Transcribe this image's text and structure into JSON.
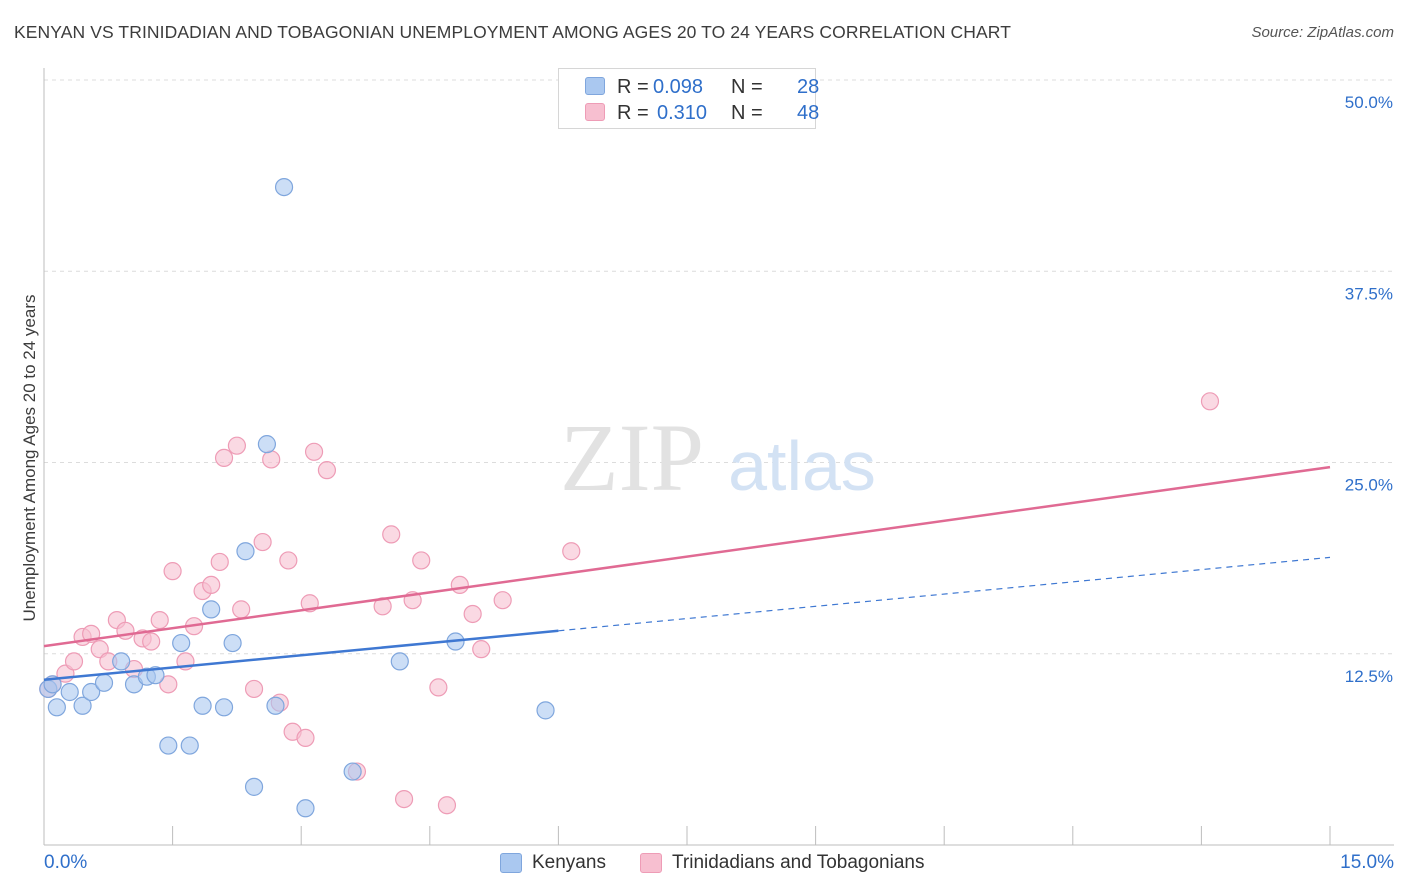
{
  "title": "KENYAN VS TRINIDADIAN AND TOBAGONIAN UNEMPLOYMENT AMONG AGES 20 TO 24 YEARS CORRELATION CHART",
  "source": "Source: ZipAtlas.com",
  "watermark": {
    "zip": "ZIP",
    "atlas": "atlas"
  },
  "legend": {
    "r_label": "R =",
    "n_label": "N =",
    "rows": [
      {
        "r": "0.098",
        "n": "28"
      },
      {
        "r": "0.310",
        "n": "48"
      }
    ]
  },
  "chart_data": {
    "type": "scatter",
    "title": "KENYAN VS TRINIDADIAN AND TOBAGONIAN UNEMPLOYMENT AMONG AGES 20 TO 24 YEARS CORRELATION CHART",
    "xlabel": "",
    "ylabel": "Unemployment Among Ages 20 to 24 years",
    "xlim": [
      0,
      15
    ],
    "ylim": [
      0,
      50
    ],
    "x_tick_labels": [
      "0.0%",
      "15.0%"
    ],
    "y_ticks": [
      12.5,
      25,
      37.5,
      50
    ],
    "y_tick_labels": [
      "12.5%",
      "25.0%",
      "37.5%",
      "50.0%"
    ],
    "grid": true,
    "legend_position": "top-center",
    "colors": {
      "kenyans_fill": "#aac8f0",
      "kenyans_stroke": "#7fa6dd",
      "kenyans_line": "#3f78d2",
      "trinidad_fill": "#f7bfd0",
      "trinidad_stroke": "#ee9cb6",
      "trinidad_line": "#e06a93",
      "tick_text": "#2f6fca"
    },
    "series": [
      {
        "name": "Kenyans",
        "r": 0.098,
        "n": 28,
        "trend": {
          "x": [
            0,
            6
          ],
          "y": [
            10.8,
            14.0
          ],
          "dashed_extension_to": [
            15,
            18.8
          ]
        },
        "points": [
          [
            0.05,
            10.2
          ],
          [
            0.15,
            9.0
          ],
          [
            0.3,
            10.0
          ],
          [
            0.45,
            9.1
          ],
          [
            0.55,
            10.0
          ],
          [
            0.7,
            10.6
          ],
          [
            0.9,
            12.0
          ],
          [
            1.05,
            10.5
          ],
          [
            1.2,
            11.0
          ],
          [
            1.3,
            11.1
          ],
          [
            1.45,
            6.5
          ],
          [
            1.6,
            13.2
          ],
          [
            1.7,
            6.5
          ],
          [
            1.85,
            9.1
          ],
          [
            1.95,
            15.4
          ],
          [
            2.1,
            9.0
          ],
          [
            2.2,
            13.2
          ],
          [
            2.35,
            19.2
          ],
          [
            2.45,
            3.8
          ],
          [
            2.6,
            26.2
          ],
          [
            2.7,
            9.1
          ],
          [
            2.8,
            43.0
          ],
          [
            3.05,
            2.4
          ],
          [
            3.6,
            4.8
          ],
          [
            4.15,
            12.0
          ],
          [
            4.8,
            13.3
          ],
          [
            5.85,
            8.8
          ],
          [
            0.1,
            10.5
          ]
        ]
      },
      {
        "name": "Trinidadians and Tobagonians",
        "r": 0.31,
        "n": 48,
        "trend": {
          "x": [
            0,
            15
          ],
          "y": [
            13.0,
            24.7
          ]
        },
        "points": [
          [
            0.1,
            10.5
          ],
          [
            0.25,
            11.2
          ],
          [
            0.35,
            12.0
          ],
          [
            0.45,
            13.6
          ],
          [
            0.55,
            13.8
          ],
          [
            0.65,
            12.8
          ],
          [
            0.75,
            12.0
          ],
          [
            0.85,
            14.7
          ],
          [
            0.95,
            14.0
          ],
          [
            1.05,
            11.5
          ],
          [
            1.15,
            13.5
          ],
          [
            1.25,
            13.3
          ],
          [
            1.35,
            14.7
          ],
          [
            1.45,
            10.5
          ],
          [
            1.5,
            17.9
          ],
          [
            1.65,
            12.0
          ],
          [
            1.75,
            14.3
          ],
          [
            1.85,
            16.6
          ],
          [
            1.95,
            17.0
          ],
          [
            2.05,
            18.5
          ],
          [
            2.1,
            25.3
          ],
          [
            2.25,
            26.1
          ],
          [
            2.3,
            15.4
          ],
          [
            2.45,
            10.2
          ],
          [
            2.55,
            19.8
          ],
          [
            2.65,
            25.2
          ],
          [
            2.75,
            9.3
          ],
          [
            2.85,
            18.6
          ],
          [
            2.9,
            7.4
          ],
          [
            3.05,
            7.0
          ],
          [
            3.1,
            15.8
          ],
          [
            3.15,
            25.7
          ],
          [
            3.3,
            24.5
          ],
          [
            3.65,
            4.8
          ],
          [
            3.95,
            15.6
          ],
          [
            4.05,
            20.3
          ],
          [
            4.2,
            3.0
          ],
          [
            4.3,
            16.0
          ],
          [
            4.4,
            18.6
          ],
          [
            4.6,
            10.3
          ],
          [
            4.7,
            2.6
          ],
          [
            4.85,
            17.0
          ],
          [
            5.0,
            15.1
          ],
          [
            5.1,
            12.8
          ],
          [
            5.35,
            16.0
          ],
          [
            6.15,
            19.2
          ],
          [
            13.6,
            29.0
          ],
          [
            0.05,
            10.2
          ]
        ]
      }
    ]
  },
  "bottom_legend": {
    "kenyans": "Kenyans",
    "trinidad": "Trinidadians and Tobagonians"
  }
}
